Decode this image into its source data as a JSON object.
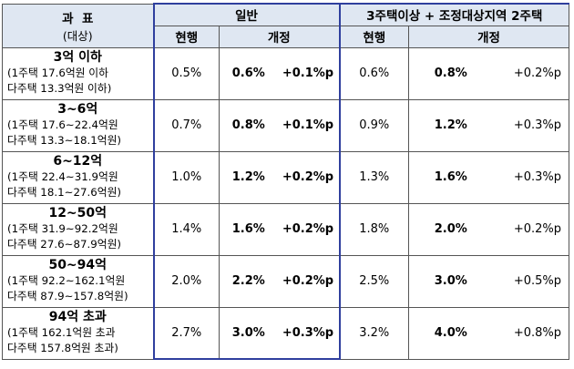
{
  "header": {
    "category_title": "과  표",
    "category_sub": "(대상)",
    "general": "일반",
    "multi": "3주택이상 + 조정대상지역 2주택",
    "current": "현행",
    "revised": "개정"
  },
  "rows": [
    {
      "title": "3억 이하",
      "line1": "(1주택 17.6억원 이하",
      "line2": "다주택 13.3억원 이하)",
      "g_cur": "0.5%",
      "g_new": "0.6%",
      "g_diff": "+0.1%p",
      "m_cur": "0.6%",
      "m_new": "0.8%",
      "m_diff": "+0.2%p"
    },
    {
      "title": "3~6억",
      "line1": "(1주택 17.6~22.4억원",
      "line2": "다주택 13.3~18.1억원)",
      "g_cur": "0.7%",
      "g_new": "0.8%",
      "g_diff": "+0.1%p",
      "m_cur": "0.9%",
      "m_new": "1.2%",
      "m_diff": "+0.3%p"
    },
    {
      "title": "6~12억",
      "line1": "(1주택 22.4~31.9억원",
      "line2": "다주택 18.1~27.6억원)",
      "g_cur": "1.0%",
      "g_new": "1.2%",
      "g_diff": "+0.2%p",
      "m_cur": "1.3%",
      "m_new": "1.6%",
      "m_diff": "+0.3%p"
    },
    {
      "title": "12~50억",
      "line1": "(1주택 31.9~92.2억원",
      "line2": "다주택 27.6~87.9억원)",
      "g_cur": "1.4%",
      "g_new": "1.6%",
      "g_diff": "+0.2%p",
      "m_cur": "1.8%",
      "m_new": "2.0%",
      "m_diff": "+0.2%p"
    },
    {
      "title": "50~94억",
      "line1": "(1주택 92.2~162.1억원",
      "line2": "다주택 87.9~157.8억원)",
      "g_cur": "2.0%",
      "g_new": "2.2%",
      "g_diff": "+0.2%p",
      "m_cur": "2.5%",
      "m_new": "3.0%",
      "m_diff": "+0.5%p"
    },
    {
      "title": "94억 초과",
      "line1": "(1주택 162.1억원 초과",
      "line2": "다주택 157.8억원 초과)",
      "g_cur": "2.7%",
      "g_new": "3.0%",
      "g_diff": "+0.3%p",
      "m_cur": "3.2%",
      "m_new": "4.0%",
      "m_diff": "+0.8%p"
    }
  ]
}
